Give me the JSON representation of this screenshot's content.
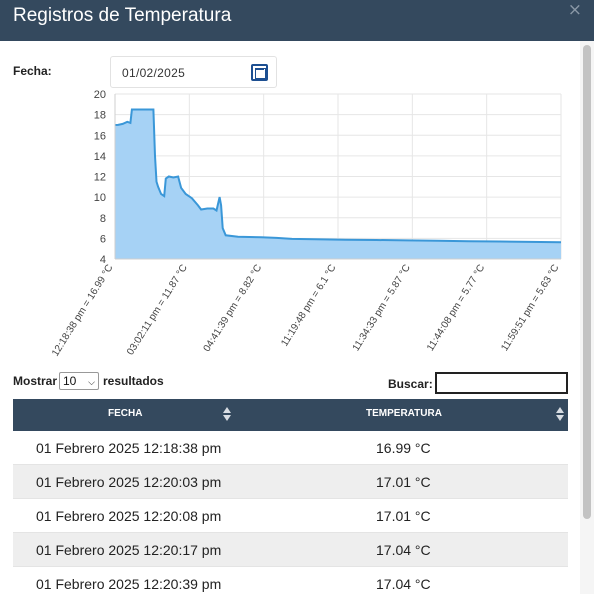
{
  "modal": {
    "title": "Registros de Temperatura",
    "close": "×"
  },
  "filter": {
    "date_label": "Fecha:",
    "date_value": "01/02/2025"
  },
  "chart_data": {
    "type": "area",
    "color": "#3a97d8",
    "fill": "#a6d2f5",
    "ylim": [
      4,
      20
    ],
    "yticks": [
      4,
      6,
      8,
      10,
      12,
      14,
      16,
      18,
      20
    ],
    "xtick_labels": [
      "12:18:38 pm = 16.99 °C",
      "03:02:11 pm = 11.87 °C",
      "04:41:39 pm = 8.82 °C",
      "11:19:48 pm = 6.1 °C",
      "11:34:33 pm = 5.87 °C",
      "11:44:08 pm = 5.77 °C",
      "11:59:51 pm = 5.63 °C"
    ],
    "points": [
      [
        0,
        16.99
      ],
      [
        2,
        17.0
      ],
      [
        5,
        17.1
      ],
      [
        8,
        17.3
      ],
      [
        10,
        17.2
      ],
      [
        11,
        18.5
      ],
      [
        14,
        18.5
      ],
      [
        22,
        18.5
      ],
      [
        25,
        18.5
      ],
      [
        26,
        14
      ],
      [
        27,
        11.5
      ],
      [
        28,
        11.0
      ],
      [
        30,
        10.3
      ],
      [
        32,
        10.1
      ],
      [
        33,
        11.8
      ],
      [
        35,
        12.0
      ],
      [
        38,
        11.9
      ],
      [
        41,
        12.0
      ],
      [
        43,
        10.9
      ],
      [
        46,
        10.3
      ],
      [
        50,
        9.9
      ],
      [
        54,
        9.2
      ],
      [
        56,
        8.8
      ],
      [
        60,
        8.9
      ],
      [
        64,
        8.9
      ],
      [
        66,
        8.7
      ],
      [
        68,
        10.0
      ],
      [
        69,
        9.2
      ],
      [
        70,
        7.0
      ],
      [
        72,
        6.3
      ],
      [
        80,
        6.15
      ],
      [
        95,
        6.1
      ],
      [
        105,
        6.05
      ],
      [
        115,
        5.95
      ],
      [
        130,
        5.92
      ],
      [
        150,
        5.87
      ],
      [
        170,
        5.84
      ],
      [
        190,
        5.8
      ],
      [
        210,
        5.77
      ],
      [
        230,
        5.73
      ],
      [
        250,
        5.7
      ],
      [
        270,
        5.66
      ],
      [
        290,
        5.63
      ]
    ],
    "xmax": 290
  },
  "table": {
    "show_label": "Mostrar",
    "page_size": "10",
    "results_label": "resultados",
    "search_label": "Buscar:",
    "columns": [
      "FECHA",
      "TEMPERATURA"
    ],
    "rows": [
      {
        "date": "01 Febrero 2025 12:18:38 pm",
        "temp": "16.99 °C"
      },
      {
        "date": "01 Febrero 2025 12:20:03 pm",
        "temp": "17.01 °C"
      },
      {
        "date": "01 Febrero 2025 12:20:08 pm",
        "temp": "17.01 °C"
      },
      {
        "date": "01 Febrero 2025 12:20:17 pm",
        "temp": "17.04 °C"
      },
      {
        "date": "01 Febrero 2025 12:20:39 pm",
        "temp": "17.04 °C"
      }
    ]
  }
}
